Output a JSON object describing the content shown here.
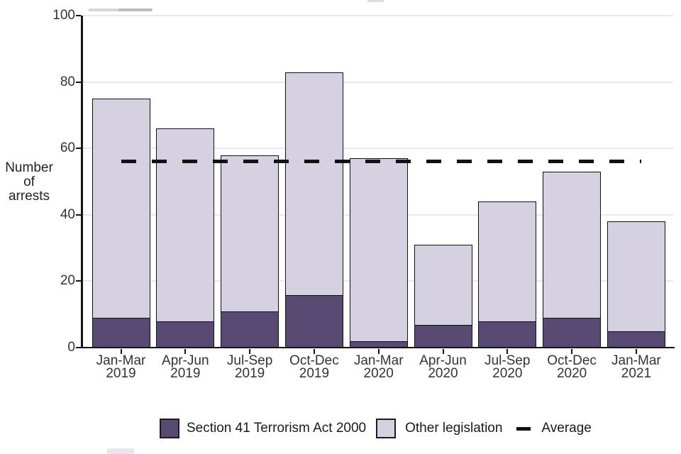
{
  "figure": {
    "y_axis_title_lines": [
      "Number",
      "of",
      "arrests"
    ]
  },
  "chart_data": {
    "type": "bar",
    "stacked": true,
    "title": "",
    "xlabel": "",
    "ylabel": "Number of arrests",
    "ylim": [
      0,
      100
    ],
    "yticks": [
      0,
      20,
      40,
      60,
      80,
      100
    ],
    "grid": true,
    "legend_position": "bottom",
    "categories": [
      "Jan-Mar 2019",
      "Apr-Jun 2019",
      "Jul-Sep 2019",
      "Oct-Dec 2019",
      "Jan-Mar 2020",
      "Apr-Jun 2020",
      "Jul-Sep 2020",
      "Oct-Dec 2020",
      "Jan-Mar 2021"
    ],
    "category_label_lines": [
      [
        "Jan-Mar",
        "2019"
      ],
      [
        "Apr-Jun",
        "2019"
      ],
      [
        "Jul-Sep",
        "2019"
      ],
      [
        "Oct-Dec",
        "2019"
      ],
      [
        "Jan-Mar",
        "2020"
      ],
      [
        "Apr-Jun",
        "2020"
      ],
      [
        "Jul-Sep",
        "2020"
      ],
      [
        "Oct-Dec",
        "2020"
      ],
      [
        "Jan-Mar",
        "2021"
      ]
    ],
    "series": [
      {
        "key": "section41",
        "name": "Section 41 Terrorism Act 2000",
        "color": "#594a74",
        "values": [
          9,
          8,
          11,
          16,
          2,
          7,
          8,
          9,
          5
        ]
      },
      {
        "key": "other",
        "name": "Other legislation",
        "color": "#d6d1e1",
        "values": [
          66,
          58,
          47,
          67,
          55,
          24,
          36,
          44,
          33
        ]
      }
    ],
    "stack_totals": [
      75,
      66,
      58,
      83,
      57,
      31,
      44,
      53,
      38
    ],
    "average_line": {
      "label": "Average",
      "value": 56,
      "color": "#111111",
      "style": "dashed"
    }
  },
  "legend": {
    "items": [
      {
        "key": "section41",
        "label": "Section 41 Terrorism Act 2000",
        "swatch_color": "#594a74",
        "marker": "square"
      },
      {
        "key": "other",
        "label": "Other legislation",
        "swatch_color": "#d6d1e1",
        "marker": "square"
      },
      {
        "key": "average",
        "label": "Average",
        "swatch_color": "#111111",
        "marker": "dash"
      }
    ]
  },
  "colors": {
    "section41_fill": "#594a74",
    "other_fill": "#d6d1e1",
    "bar_border": "#111111",
    "average_line": "#111111",
    "gridline": "#e9e9e9",
    "axis": "#141414",
    "text": "#333333"
  }
}
